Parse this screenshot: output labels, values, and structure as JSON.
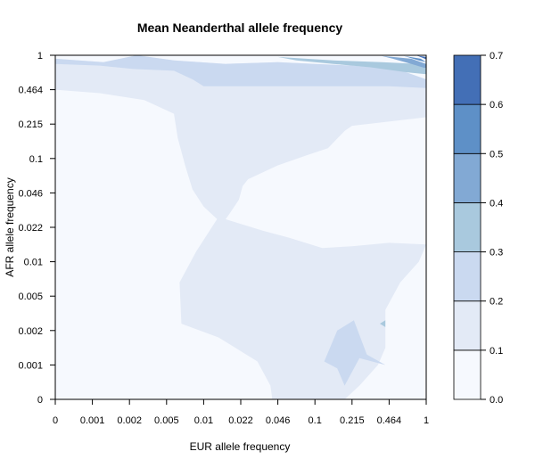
{
  "chart_data": {
    "type": "heatmap",
    "subtype": "filled-contour",
    "title": "Mean Neanderthal allele frequency",
    "xlabel": "EUR allele frequency",
    "ylabel": "AFR allele frequency",
    "x_ticks": [
      "0",
      "0.001",
      "0.002",
      "0.005",
      "0.01",
      "0.022",
      "0.046",
      "0.1",
      "0.215",
      "0.464",
      "1"
    ],
    "y_ticks": [
      "0",
      "0.001",
      "0.002",
      "0.005",
      "0.01",
      "0.022",
      "0.046",
      "0.1",
      "0.215",
      "0.464",
      "1"
    ],
    "colorbar": {
      "levels": [
        0.0,
        0.1,
        0.2,
        0.3,
        0.4,
        0.5,
        0.6,
        0.7
      ],
      "labels": [
        "0.0",
        "0.1",
        "0.2",
        "0.3",
        "0.4",
        "0.5",
        "0.6",
        "0.7"
      ],
      "colors": [
        "#f6f9fe",
        "#e3eaf6",
        "#cad9f0",
        "#a9c9de",
        "#82a9d4",
        "#5e90c7",
        "#436fb6"
      ]
    },
    "grid": false,
    "legend": "right",
    "regions": [
      {
        "level": 1,
        "value_range": [
          0.1,
          0.2
        ],
        "points": [
          [
            0,
            9.9
          ],
          [
            1.3,
            9.8
          ],
          [
            2.2,
            10
          ],
          [
            3.2,
            9.85
          ],
          [
            4.6,
            9.75
          ],
          [
            6,
            9.8
          ],
          [
            7,
            9.75
          ],
          [
            8,
            9.7
          ],
          [
            9.2,
            9.6
          ],
          [
            10,
            9.3
          ],
          [
            10,
            8.2
          ],
          [
            8,
            7.95
          ],
          [
            7.8,
            7.8
          ],
          [
            7.35,
            7.3
          ],
          [
            6.8,
            7.1
          ],
          [
            6,
            6.8
          ],
          [
            5.2,
            6.4
          ],
          [
            5.05,
            6.2
          ],
          [
            4.95,
            5.8
          ],
          [
            4.7,
            5.4
          ],
          [
            4.5,
            5.1
          ],
          [
            4,
            5.6
          ],
          [
            3.7,
            6.1
          ],
          [
            3.5,
            6.8
          ],
          [
            3.3,
            7.6
          ],
          [
            3.2,
            8.3
          ],
          [
            2.4,
            8.7
          ],
          [
            1.2,
            8.9
          ],
          [
            0,
            9
          ]
        ]
      },
      {
        "level": 1,
        "value_range": [
          0.1,
          0.2
        ],
        "points": [
          [
            4.4,
            5.3
          ],
          [
            5.6,
            4.9
          ],
          [
            6.3,
            4.7
          ],
          [
            7.2,
            4.4
          ],
          [
            8,
            4.45
          ],
          [
            9,
            4.55
          ],
          [
            10,
            4.5
          ],
          [
            9.8,
            4
          ],
          [
            9.3,
            3.4
          ],
          [
            8.9,
            2.6
          ],
          [
            8.9,
            1.5
          ],
          [
            8.7,
            1
          ],
          [
            8.2,
            0.4
          ],
          [
            7.8,
            0
          ],
          [
            5.85,
            0
          ],
          [
            5.8,
            0.4
          ],
          [
            5.45,
            1.1
          ],
          [
            4.4,
            1.8
          ],
          [
            3.4,
            2.2
          ],
          [
            3.35,
            3.4
          ],
          [
            3.8,
            4.3
          ]
        ]
      },
      {
        "level": 2,
        "value_range": [
          0.2,
          0.3
        ],
        "points": [
          [
            0,
            9.9
          ],
          [
            1.3,
            9.8
          ],
          [
            2.2,
            10
          ],
          [
            3.2,
            9.85
          ],
          [
            4.6,
            9.75
          ],
          [
            6,
            9.8
          ],
          [
            7,
            9.75
          ],
          [
            8,
            9.7
          ],
          [
            9.2,
            9.6
          ],
          [
            10,
            9.3
          ],
          [
            10,
            9.05
          ],
          [
            9,
            9.1
          ],
          [
            8,
            9.1
          ],
          [
            6,
            9.1
          ],
          [
            4,
            9.1
          ],
          [
            3.7,
            9.3
          ],
          [
            3.2,
            9.55
          ],
          [
            2.1,
            9.6
          ],
          [
            1.2,
            9.7
          ],
          [
            0,
            9.75
          ]
        ]
      },
      {
        "level": 2,
        "value_range": [
          0.2,
          0.3
        ],
        "points": [
          [
            8.9,
            1
          ],
          [
            8.4,
            1.3
          ],
          [
            8.05,
            2.3
          ],
          [
            7.6,
            2
          ],
          [
            7.25,
            1.1
          ],
          [
            7.6,
            0.9
          ],
          [
            7.8,
            0.4
          ],
          [
            8.2,
            1.2
          ]
        ]
      },
      {
        "level": 3,
        "value_range": [
          0.3,
          0.4
        ],
        "points": [
          [
            6,
            9.95
          ],
          [
            7.5,
            9.85
          ],
          [
            8.8,
            9.8
          ],
          [
            9.8,
            9.75
          ],
          [
            10,
            9.6
          ],
          [
            10,
            9.45
          ],
          [
            9.5,
            9.5
          ],
          [
            8.5,
            9.65
          ],
          [
            7.5,
            9.75
          ],
          [
            6.5,
            9.85
          ]
        ]
      },
      {
        "level": 3,
        "value_range": [
          0.3,
          0.4
        ],
        "points": [
          [
            8.9,
            2.3
          ],
          [
            8.9,
            2.1
          ],
          [
            8.75,
            2.2
          ]
        ]
      },
      {
        "level": 4,
        "value_range": [
          0.4,
          0.5
        ],
        "points": [
          [
            8.8,
            9.98
          ],
          [
            9.6,
            9.9
          ],
          [
            10,
            9.75
          ],
          [
            10,
            9.62
          ],
          [
            9.6,
            9.75
          ],
          [
            9.1,
            9.9
          ]
        ]
      },
      {
        "level": 5,
        "value_range": [
          0.5,
          0.6
        ],
        "points": [
          [
            9.4,
            9.98
          ],
          [
            9.85,
            9.9
          ],
          [
            10,
            9.8
          ],
          [
            9.8,
            9.85
          ]
        ]
      },
      {
        "level": 6,
        "value_range": [
          0.6,
          0.7
        ],
        "points": [
          [
            9.75,
            9.99
          ],
          [
            10,
            9.95
          ],
          [
            10,
            9.88
          ],
          [
            9.9,
            9.93
          ]
        ]
      }
    ]
  }
}
